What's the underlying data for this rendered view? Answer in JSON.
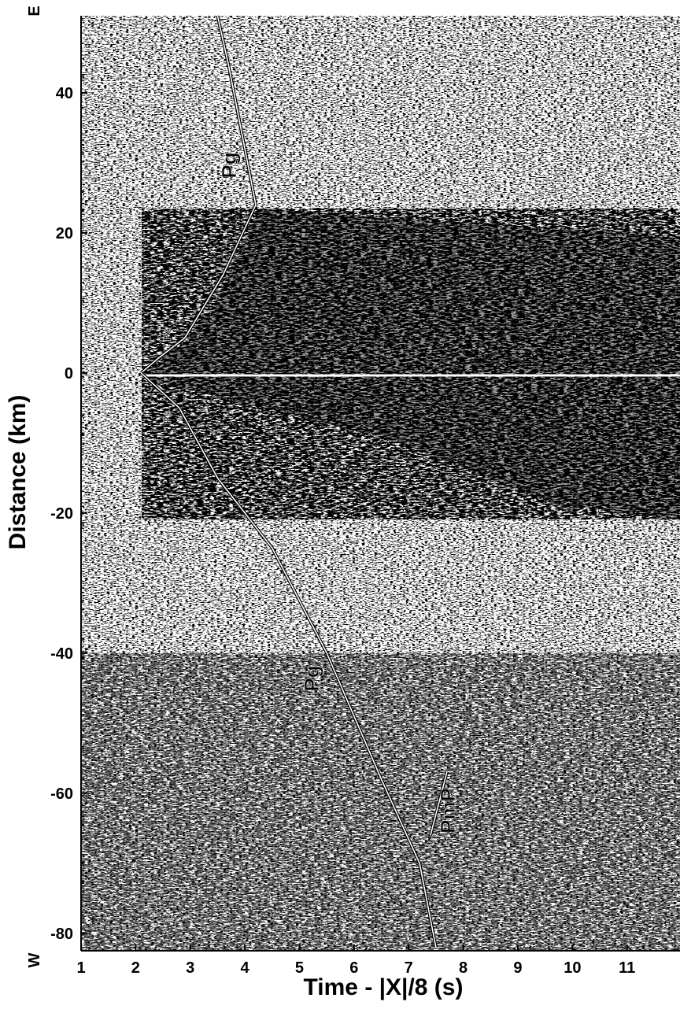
{
  "chart_data": {
    "type": "seismic-section",
    "xlabel": "Time - |X|/8 (s)",
    "ylabel": "Distance (km)",
    "y_end_labels": [
      "E",
      "W"
    ],
    "xlim": [
      1,
      11.97
    ],
    "ylim": [
      -82.5,
      51
    ],
    "xticks": [
      1,
      2,
      3,
      4,
      5,
      6,
      7,
      8,
      9,
      10,
      11
    ],
    "yticks": [
      40,
      20,
      0,
      -20,
      -40,
      -60,
      -80
    ],
    "annotations": [
      "Pg",
      "Ps",
      "Ps",
      "Pg",
      "PmP"
    ],
    "picks": [
      {
        "color": "#ffffff",
        "x": [
          3.5,
          3.7,
          3.9,
          4.2,
          3.6,
          2.9,
          2.4,
          2.1
        ],
        "values": [
          51,
          44,
          36,
          24,
          14,
          5,
          2,
          0
        ]
      },
      {
        "color": "#ffffff",
        "x": [
          2.1,
          2.8,
          3.5,
          4.5,
          5.5,
          6.5,
          7.2,
          7.5
        ],
        "values": [
          0,
          -5,
          -15,
          -25,
          -40,
          -58,
          -70,
          -82
        ]
      },
      {
        "color": "#ffffff",
        "x": [
          7.4,
          7.7
        ],
        "values": [
          -66,
          -57
        ]
      }
    ]
  }
}
